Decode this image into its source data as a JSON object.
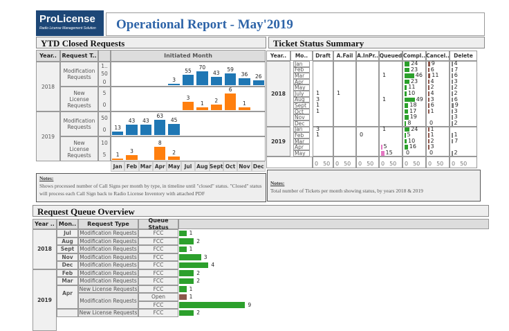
{
  "logo": {
    "brand": "ProLicense",
    "tagline": "Radio License Management Solution"
  },
  "title": "Operational Report - May'2019",
  "ytd": {
    "header": "YTD Closed Requests",
    "col_year": "Year..",
    "col_type": "Request T..",
    "col_chart": "Initiated Month",
    "months": [
      "Jan",
      "Feb",
      "Mar",
      "Apr",
      "May",
      "Jul",
      "Aug",
      "Sept",
      "Oct",
      "Nov",
      "Dec"
    ],
    "colors": {
      "modification": "#1f77b4",
      "new_license": "#ff7f0e"
    },
    "rows": [
      {
        "year": "2018",
        "type": "Modification Requests",
        "ticks": [
          "1..",
          "50",
          "0"
        ],
        "max": 100,
        "color": "#1f77b4",
        "values": [
          null,
          null,
          null,
          null,
          3,
          55,
          70,
          43,
          59,
          36,
          26
        ]
      },
      {
        "year": "2018",
        "type": "New License Requests",
        "ticks": [
          "5",
          "0"
        ],
        "max": 7,
        "color": "#ff7f0e",
        "values": [
          null,
          null,
          null,
          null,
          null,
          3,
          1,
          2,
          6,
          1,
          null
        ]
      },
      {
        "year": "2019",
        "type": "Modification Requests",
        "ticks": [
          "50",
          "0"
        ],
        "max": 80,
        "color": "#1f77b4",
        "values": [
          13,
          43,
          43,
          63,
          45,
          null,
          null,
          null,
          null,
          null,
          null
        ]
      },
      {
        "year": "2019",
        "type": "New License Requests",
        "ticks": [
          "10",
          "5"
        ],
        "max": 12,
        "color": "#ff7f0e",
        "values": [
          1,
          3,
          null,
          8,
          2,
          null,
          null,
          null,
          null,
          null,
          null
        ]
      }
    ],
    "notes_title": "Notes:",
    "notes": "Shows processed number of Call Signs per month by type, in timeline until \"closed\" status. \"Closed\" status will process each Call Sign back to Radio License Inventory with attached PDF"
  },
  "tickets": {
    "header": "Ticket Status Summary",
    "columns": [
      "Year..",
      "Mo..",
      "Draft",
      "A.Fail",
      "A.InPr..",
      "Queued",
      "Compl..",
      "Cancel..",
      "Delete"
    ],
    "axis": [
      "0",
      "50"
    ],
    "colors": {
      "completed": "#2ca02c",
      "cancelled": "#8c564b",
      "delete": "#7f7f7f",
      "queued": "#e377c2"
    },
    "years": [
      {
        "year": "2018",
        "months": [
          "Jan",
          "Feb",
          "Mar",
          "Apr",
          "May",
          "July",
          "Aug",
          "Sept",
          "Oct",
          "Nov",
          "Dec"
        ],
        "draft": [
          null,
          null,
          null,
          null,
          null,
          1,
          3,
          1,
          1,
          null,
          null
        ],
        "afail": [
          null,
          null,
          null,
          null,
          null,
          1,
          null,
          null,
          null,
          null,
          null
        ],
        "ainpr": [
          null,
          null,
          null,
          null,
          null,
          null,
          null,
          null,
          null,
          null,
          null
        ],
        "queued": [
          null,
          null,
          1,
          null,
          null,
          null,
          1,
          null,
          null,
          null,
          null
        ],
        "completed": [
          24,
          23,
          46,
          23,
          11,
          10,
          49,
          18,
          17,
          19,
          8
        ],
        "cancelled": [
          9,
          6,
          11,
          4,
          2,
          4,
          3,
          6,
          1,
          null,
          0
        ],
        "delete": [
          4,
          7,
          6,
          3,
          2,
          2,
          6,
          9,
          3,
          3,
          2
        ]
      },
      {
        "year": "2019",
        "months": [
          "Jan",
          "Feb",
          "Mar",
          "Apr",
          "May"
        ],
        "draft": [
          3,
          1,
          null,
          null,
          null
        ],
        "afail": [
          null,
          null,
          null,
          null,
          null
        ],
        "ainpr": [
          null,
          0,
          null,
          null,
          null
        ],
        "queued": [
          1,
          null,
          null,
          5,
          15
        ],
        "completed": [
          24,
          5,
          10,
          16,
          0
        ],
        "cancelled": [
          1,
          1,
          2,
          3,
          0
        ],
        "delete": [
          null,
          1,
          7,
          null,
          2
        ]
      }
    ],
    "notes_title": "Notes:",
    "notes": "Total number of Tickets per month showing status, by years 2018 & 2019"
  },
  "queue": {
    "header": "Request Queue Overview",
    "columns": [
      "Year ..",
      "Mon..",
      "Request Type",
      "Queue Status"
    ],
    "colors": {
      "FCC": "#2ca02c",
      "Open": "#8c564b"
    },
    "rows": [
      {
        "year": "2018",
        "month": "Jul",
        "type": "Modification Requests",
        "status": "FCC",
        "value": 1
      },
      {
        "year": "2018",
        "month": "Aug",
        "type": "Modification Requests",
        "status": "FCC",
        "value": 2
      },
      {
        "year": "2018",
        "month": "Sept",
        "type": "Modification Requests",
        "status": "FCC",
        "value": 1
      },
      {
        "year": "2018",
        "month": "Nov",
        "type": "Modification Requests",
        "status": "FCC",
        "value": 3
      },
      {
        "year": "2018",
        "month": "Dec",
        "type": "Modification Requests",
        "status": "FCC",
        "value": 4
      },
      {
        "year": "2019",
        "month": "Feb",
        "type": "Modification Requests",
        "status": "FCC",
        "value": 2
      },
      {
        "year": "2019",
        "month": "Mar",
        "type": "Modification Requests",
        "status": "FCC",
        "value": 2
      },
      {
        "year": "2019",
        "month": "Apr",
        "type": "New License Requests",
        "status": "FCC",
        "value": 1
      },
      {
        "year": "2019",
        "month": "Apr",
        "type": "Modification Requests",
        "status": "Open",
        "value": 1
      },
      {
        "year": "2019",
        "month": "Apr",
        "type": "Modification Requests",
        "status": "FCC",
        "value": 9
      },
      {
        "year": "2019",
        "month": "",
        "type": "New License Requests",
        "status": "FCC",
        "value": 2
      }
    ]
  }
}
